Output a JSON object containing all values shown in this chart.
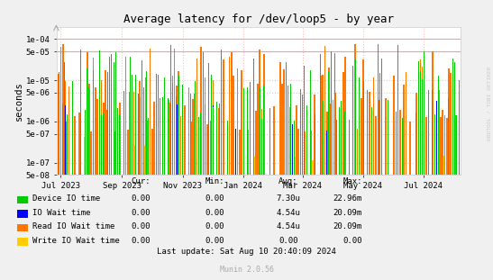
{
  "title": "Average latency for /dev/loop5 - by year",
  "ylabel": "seconds",
  "background_color": "#f0f0f0",
  "plot_bg_color": "#ffffff",
  "grid_color_dot": "#ffbbbb",
  "ymin": 5e-08,
  "ymax": 0.0002,
  "xmin": 1687824000,
  "xmax": 1723075200,
  "legend_labels": [
    "Device IO time",
    "IO Wait time",
    "Read IO Wait time",
    "Write IO Wait time"
  ],
  "legend_colors": [
    "#00cc00",
    "#0000ff",
    "#ff7700",
    "#ffcc00"
  ],
  "table_headers": [
    "Cur:",
    "Min:",
    "Avg:",
    "Max:"
  ],
  "table_data": [
    [
      "0.00",
      "0.00",
      "7.30u",
      "22.96m"
    ],
    [
      "0.00",
      "0.00",
      "4.54u",
      "20.09m"
    ],
    [
      "0.00",
      "0.00",
      "4.54u",
      "20.09m"
    ],
    [
      "0.00",
      "0.00",
      "0.00",
      "0.00"
    ]
  ],
  "last_update": "Last update: Sat Aug 10 20:40:09 2024",
  "munin_version": "Munin 2.0.56",
  "watermark": "RRDTOOL / TOBI OETIKER",
  "xtick_labels": [
    "Jul 2023",
    "Sep 2023",
    "Nov 2023",
    "Jan 2024",
    "Mar 2024",
    "May 2024",
    "Jul 2024"
  ],
  "xtick_positions": [
    1688169600,
    1693526400,
    1698796800,
    1704067200,
    1709251200,
    1714521600,
    1719792000
  ],
  "ytick_labels": [
    "5e-08",
    "1e-07",
    "5e-07",
    "1e-06",
    "5e-06",
    "1e-05",
    "5e-05",
    "1e-04"
  ],
  "ytick_values": [
    5e-08,
    1e-07,
    5e-07,
    1e-06,
    5e-06,
    1e-05,
    5e-05,
    0.0001
  ],
  "hline_values": [
    5e-05,
    0.0001
  ],
  "hline_color": "#ff9999"
}
